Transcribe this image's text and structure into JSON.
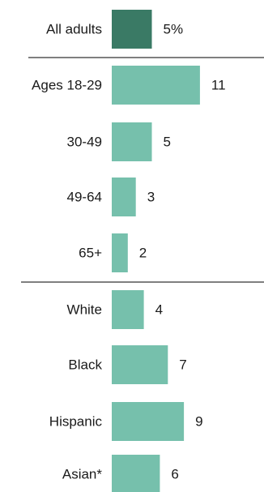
{
  "chart_data": {
    "type": "bar",
    "orientation": "horizontal",
    "categories": [
      "All adults",
      "Ages 18-29",
      "30-49",
      "49-64",
      "65+",
      "White",
      "Black",
      "Hispanic",
      "Asian*"
    ],
    "values": [
      5,
      11,
      5,
      3,
      2,
      4,
      7,
      9,
      6
    ],
    "value_labels": [
      "5%",
      "11",
      "5",
      "3",
      "2",
      "4",
      "7",
      "9",
      "6"
    ],
    "groups": [
      {
        "categories": [
          "All adults"
        ]
      },
      {
        "categories": [
          "Ages 18-29",
          "30-49",
          "49-64",
          "65+"
        ]
      },
      {
        "categories": [
          "White",
          "Black",
          "Hispanic",
          "Asian*"
        ]
      }
    ],
    "title": "",
    "xlabel": "",
    "ylabel": "",
    "xlim": [
      0,
      11
    ],
    "grid": false,
    "legend": "none",
    "colors": {
      "highlight": "#3a7a65",
      "bar": "#76c0ac"
    },
    "highlight_category": "All adults"
  }
}
